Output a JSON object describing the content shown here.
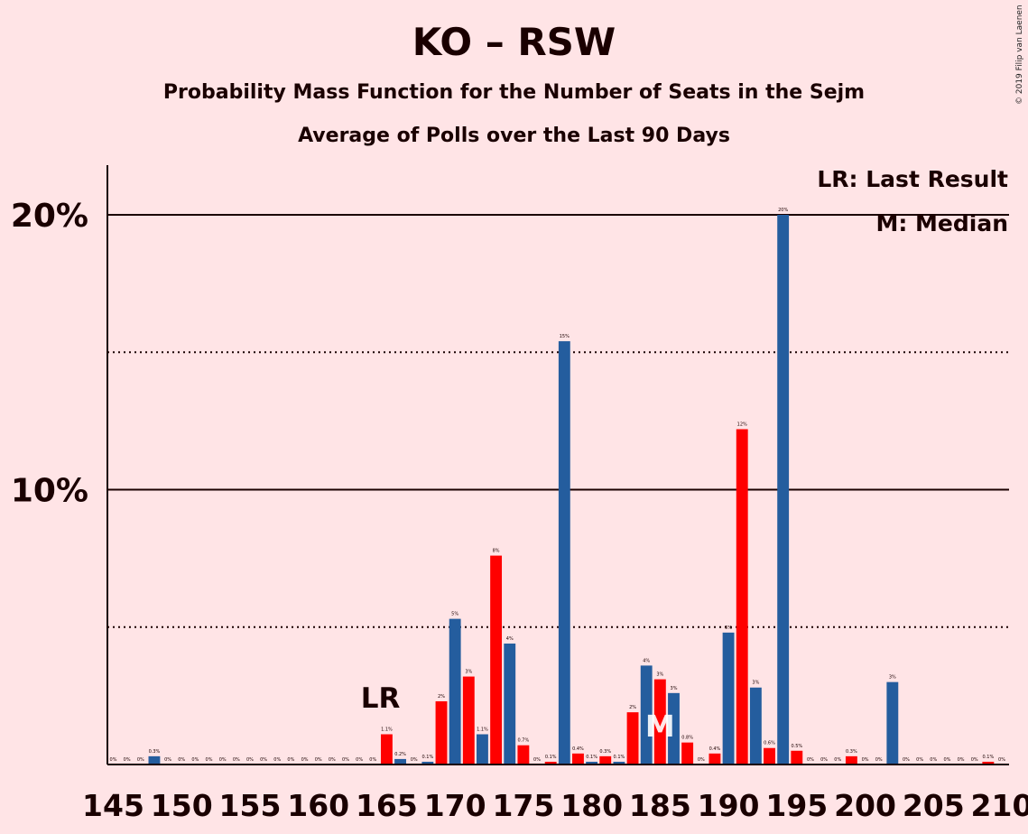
{
  "title": "KO – RSW",
  "subtitle": "Probability Mass Function for the Number of Seats in the Sejm",
  "subtitle2": "Average of Polls over the Last 90 Days",
  "copyright": "© 2019 Filip van Laenen",
  "legend": {
    "lr": "LR: Last Result",
    "m": "M: Median"
  },
  "colors": {
    "background": "#FFE4E6",
    "blue": "#245D9E",
    "red": "#FF0000",
    "text": "#1A0000"
  },
  "chart_data": {
    "type": "bar",
    "xlim": [
      145,
      210
    ],
    "ylim": [
      0,
      22
    ],
    "y_ticks": [
      {
        "value": 10,
        "label": "10%"
      },
      {
        "value": 20,
        "label": "20%"
      }
    ],
    "y_dotted": [
      5,
      15
    ],
    "x_ticks": [
      145,
      150,
      155,
      160,
      165,
      170,
      175,
      180,
      185,
      190,
      195,
      200,
      205,
      210
    ],
    "x_tick_labels": [
      "145",
      "150",
      "155",
      "160",
      "165",
      "170",
      "175",
      "180",
      "185",
      "190",
      "195",
      "200",
      "205",
      "210"
    ],
    "last_result": {
      "seat": 166,
      "label": "LR"
    },
    "median": {
      "seat": 185,
      "label": "M"
    },
    "bars": [
      {
        "x": 145,
        "value": 0,
        "label": "0%"
      },
      {
        "x": 146,
        "value": 0,
        "label": "0%"
      },
      {
        "x": 147,
        "value": 0,
        "label": "0%"
      },
      {
        "x": 148,
        "value": 0.3,
        "label": "0.3%"
      },
      {
        "x": 149,
        "value": 0,
        "label": "0%"
      },
      {
        "x": 150,
        "value": 0,
        "label": "0%"
      },
      {
        "x": 151,
        "value": 0,
        "label": "0%"
      },
      {
        "x": 152,
        "value": 0,
        "label": "0%"
      },
      {
        "x": 153,
        "value": 0,
        "label": "0%"
      },
      {
        "x": 154,
        "value": 0,
        "label": "0%"
      },
      {
        "x": 155,
        "value": 0,
        "label": "0%"
      },
      {
        "x": 156,
        "value": 0,
        "label": "0%"
      },
      {
        "x": 157,
        "value": 0,
        "label": "0%"
      },
      {
        "x": 158,
        "value": 0,
        "label": "0%"
      },
      {
        "x": 159,
        "value": 0,
        "label": "0%"
      },
      {
        "x": 160,
        "value": 0,
        "label": "0%"
      },
      {
        "x": 161,
        "value": 0,
        "label": "0%"
      },
      {
        "x": 162,
        "value": 0,
        "label": "0%"
      },
      {
        "x": 163,
        "value": 0,
        "label": "0%"
      },
      {
        "x": 164,
        "value": 0,
        "label": "0%"
      },
      {
        "x": 165,
        "value": 1.1,
        "label": "1.1%"
      },
      {
        "x": 166,
        "value": 0.2,
        "label": "0.2%"
      },
      {
        "x": 167,
        "value": 0,
        "label": "0%"
      },
      {
        "x": 168,
        "value": 0.1,
        "label": "0.1%"
      },
      {
        "x": 169,
        "value": 2.3,
        "label": "2%"
      },
      {
        "x": 170,
        "value": 5.3,
        "label": "5%"
      },
      {
        "x": 171,
        "value": 3.2,
        "label": "3%"
      },
      {
        "x": 172,
        "value": 1.1,
        "label": "1.1%"
      },
      {
        "x": 173,
        "value": 7.6,
        "label": "8%"
      },
      {
        "x": 174,
        "value": 4.4,
        "label": "4%"
      },
      {
        "x": 175,
        "value": 0.7,
        "label": "0.7%"
      },
      {
        "x": 176,
        "value": 0,
        "label": "0%"
      },
      {
        "x": 177,
        "value": 0.1,
        "label": "0.1%"
      },
      {
        "x": 178,
        "value": 15.4,
        "label": "15%"
      },
      {
        "x": 179,
        "value": 0.4,
        "label": "0.4%"
      },
      {
        "x": 180,
        "value": 0.1,
        "label": "0.1%"
      },
      {
        "x": 181,
        "value": 0.3,
        "label": "0.3%"
      },
      {
        "x": 182,
        "value": 0.1,
        "label": "0.1%"
      },
      {
        "x": 183,
        "value": 1.9,
        "label": "2%"
      },
      {
        "x": 184,
        "value": 3.6,
        "label": "4%"
      },
      {
        "x": 185,
        "value": 3.1,
        "label": "3%"
      },
      {
        "x": 186,
        "value": 2.6,
        "label": "3%"
      },
      {
        "x": 187,
        "value": 0.8,
        "label": "0.8%"
      },
      {
        "x": 188,
        "value": 0,
        "label": "0%"
      },
      {
        "x": 189,
        "value": 0.4,
        "label": "0.4%"
      },
      {
        "x": 190,
        "value": 4.8,
        "label": "5%"
      },
      {
        "x": 191,
        "value": 12.2,
        "label": "12%"
      },
      {
        "x": 192,
        "value": 2.8,
        "label": "3%"
      },
      {
        "x": 193,
        "value": 0.6,
        "label": "0.6%"
      },
      {
        "x": 194,
        "value": 20.0,
        "label": "20%"
      },
      {
        "x": 195,
        "value": 0.5,
        "label": "0.5%"
      },
      {
        "x": 196,
        "value": 0,
        "label": "0%"
      },
      {
        "x": 197,
        "value": 0,
        "label": "0%"
      },
      {
        "x": 198,
        "value": 0,
        "label": "0%"
      },
      {
        "x": 199,
        "value": 0.3,
        "label": "0.3%"
      },
      {
        "x": 200,
        "value": 0,
        "label": "0%"
      },
      {
        "x": 201,
        "value": 0,
        "label": "0%"
      },
      {
        "x": 202,
        "value": 3.0,
        "label": "3%"
      },
      {
        "x": 203,
        "value": 0,
        "label": "0%"
      },
      {
        "x": 204,
        "value": 0,
        "label": "0%"
      },
      {
        "x": 205,
        "value": 0,
        "label": "0%"
      },
      {
        "x": 206,
        "value": 0,
        "label": "0%"
      },
      {
        "x": 207,
        "value": 0,
        "label": "0%"
      },
      {
        "x": 208,
        "value": 0,
        "label": "0%"
      },
      {
        "x": 209,
        "value": 0.1,
        "label": "0.1%"
      },
      {
        "x": 210,
        "value": 0,
        "label": "0%"
      }
    ]
  }
}
